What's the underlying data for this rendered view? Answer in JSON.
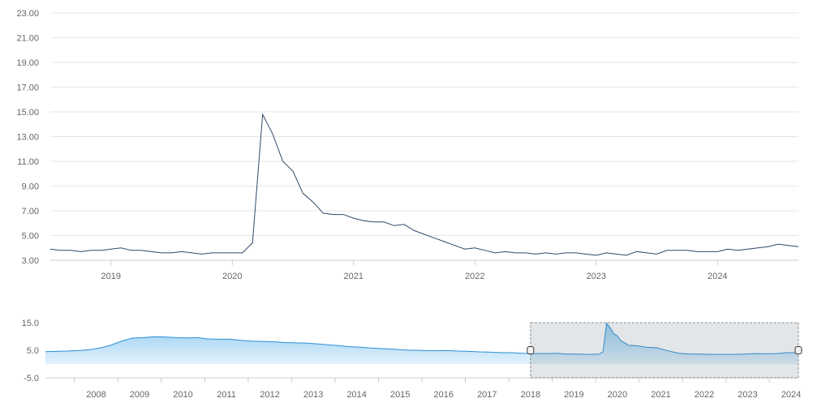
{
  "chart_data": [
    {
      "type": "line",
      "title": "",
      "xlabel": "",
      "ylabel": "",
      "ylim": [
        3.0,
        23.0
      ],
      "y_ticks": [
        "3.00",
        "5.00",
        "7.00",
        "9.00",
        "11.00",
        "13.00",
        "15.00",
        "17.00",
        "19.00",
        "21.00",
        "23.00"
      ],
      "x_ticks": [
        "2019",
        "2020",
        "2021",
        "2022",
        "2023",
        "2024"
      ],
      "xlim": [
        "2018-07",
        "2024-09"
      ],
      "grid": true,
      "legend": "none",
      "line_color": "#2e4a6b",
      "series": [
        {
          "x": [
            "2018-07",
            "2018-08",
            "2018-09",
            "2018-10",
            "2018-11",
            "2018-12",
            "2019-01",
            "2019-02",
            "2019-03",
            "2019-04",
            "2019-05",
            "2019-06",
            "2019-07",
            "2019-08",
            "2019-09",
            "2019-10",
            "2019-11",
            "2019-12",
            "2020-01",
            "2020-02",
            "2020-03",
            "2020-04",
            "2020-05",
            "2020-06",
            "2020-07",
            "2020-08",
            "2020-09",
            "2020-10",
            "2020-11",
            "2020-12",
            "2021-01",
            "2021-02",
            "2021-03",
            "2021-04",
            "2021-05",
            "2021-06",
            "2021-07",
            "2021-08",
            "2021-09",
            "2021-10",
            "2021-11",
            "2021-12",
            "2022-01",
            "2022-02",
            "2022-03",
            "2022-04",
            "2022-05",
            "2022-06",
            "2022-07",
            "2022-08",
            "2022-09",
            "2022-10",
            "2022-11",
            "2022-12",
            "2023-01",
            "2023-02",
            "2023-03",
            "2023-04",
            "2023-05",
            "2023-06",
            "2023-07",
            "2023-08",
            "2023-09",
            "2023-10",
            "2023-11",
            "2023-12",
            "2024-01",
            "2024-02",
            "2024-03",
            "2024-04",
            "2024-05",
            "2024-06",
            "2024-07",
            "2024-08",
            "2024-09"
          ],
          "values": [
            3.9,
            3.8,
            3.8,
            3.7,
            3.8,
            3.8,
            3.9,
            4.0,
            3.8,
            3.8,
            3.7,
            3.6,
            3.6,
            3.7,
            3.6,
            3.5,
            3.6,
            3.6,
            3.6,
            3.6,
            4.4,
            14.8,
            13.2,
            11.0,
            10.2,
            8.4,
            7.7,
            6.8,
            6.7,
            6.7,
            6.4,
            6.2,
            6.1,
            6.1,
            5.8,
            5.9,
            5.4,
            5.1,
            4.8,
            4.5,
            4.2,
            3.9,
            4.0,
            3.8,
            3.6,
            3.7,
            3.6,
            3.6,
            3.5,
            3.6,
            3.5,
            3.6,
            3.6,
            3.5,
            3.4,
            3.6,
            3.5,
            3.4,
            3.7,
            3.6,
            3.5,
            3.8,
            3.8,
            3.8,
            3.7,
            3.7,
            3.7,
            3.9,
            3.8,
            3.9,
            4.0,
            4.1,
            4.3,
            4.2,
            4.1
          ]
        }
      ]
    },
    {
      "type": "area",
      "title": "",
      "xlabel": "",
      "ylabel": "",
      "ylim": [
        -5.0,
        15.0
      ],
      "y_ticks": [
        "-5.0",
        "5.0",
        "15.0"
      ],
      "x_ticks": [
        "2008",
        "2009",
        "2010",
        "2011",
        "2012",
        "2013",
        "2014",
        "2015",
        "2016",
        "2017",
        "2018",
        "2019",
        "2020",
        "2021",
        "2022",
        "2023",
        "2024"
      ],
      "xlim": [
        "2007-05",
        "2024-09"
      ],
      "fill_color": "#8fcaf2",
      "line_color": "#2b8fd6",
      "selected_range": [
        "2018-07",
        "2024-09"
      ],
      "series": [
        {
          "x": [
            "2007-05",
            "2007-08",
            "2007-11",
            "2008-02",
            "2008-05",
            "2008-08",
            "2008-11",
            "2009-02",
            "2009-05",
            "2009-08",
            "2009-11",
            "2010-02",
            "2010-05",
            "2010-08",
            "2010-11",
            "2011-02",
            "2011-05",
            "2011-08",
            "2011-11",
            "2012-02",
            "2012-05",
            "2012-08",
            "2012-11",
            "2013-02",
            "2013-05",
            "2013-08",
            "2013-11",
            "2014-02",
            "2014-05",
            "2014-08",
            "2014-11",
            "2015-02",
            "2015-05",
            "2015-08",
            "2015-11",
            "2016-02",
            "2016-05",
            "2016-08",
            "2016-11",
            "2017-02",
            "2017-05",
            "2017-08",
            "2017-11",
            "2018-02",
            "2018-05",
            "2018-08",
            "2018-11",
            "2019-02",
            "2019-05",
            "2019-08",
            "2019-11",
            "2020-02",
            "2020-03",
            "2020-04",
            "2020-05",
            "2020-06",
            "2020-07",
            "2020-08",
            "2020-09",
            "2020-10",
            "2020-12",
            "2021-03",
            "2021-06",
            "2021-09",
            "2021-12",
            "2022-03",
            "2022-06",
            "2022-09",
            "2022-12",
            "2023-03",
            "2023-06",
            "2023-09",
            "2023-12",
            "2024-03",
            "2024-06",
            "2024-09"
          ],
          "values": [
            4.5,
            4.6,
            4.7,
            4.9,
            5.2,
            5.8,
            6.8,
            8.3,
            9.4,
            9.6,
            9.9,
            9.8,
            9.6,
            9.5,
            9.6,
            9.1,
            9.0,
            9.0,
            8.6,
            8.3,
            8.2,
            8.1,
            7.8,
            7.7,
            7.6,
            7.3,
            7.0,
            6.7,
            6.3,
            6.1,
            5.8,
            5.6,
            5.4,
            5.1,
            5.0,
            4.9,
            4.8,
            4.9,
            4.7,
            4.6,
            4.4,
            4.3,
            4.1,
            4.1,
            3.9,
            3.8,
            3.8,
            3.9,
            3.6,
            3.6,
            3.5,
            3.6,
            4.4,
            14.8,
            13.2,
            11.0,
            10.2,
            8.4,
            7.7,
            6.8,
            6.7,
            6.1,
            5.9,
            4.8,
            3.9,
            3.6,
            3.6,
            3.5,
            3.5,
            3.5,
            3.6,
            3.8,
            3.7,
            3.8,
            4.1,
            4.1
          ]
        }
      ]
    }
  ]
}
